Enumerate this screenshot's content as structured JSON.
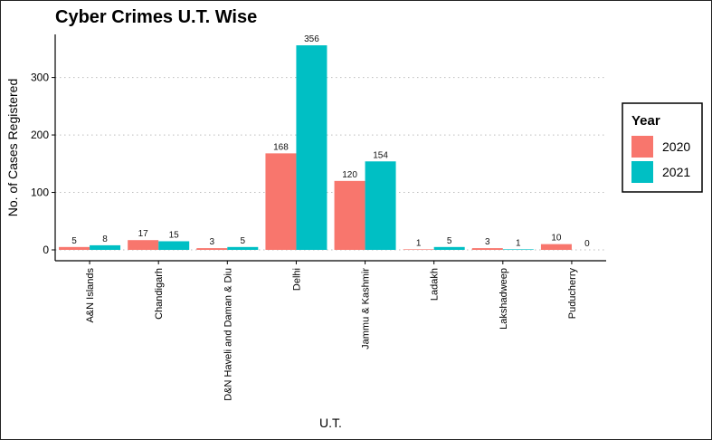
{
  "chart_data": {
    "type": "bar",
    "title": "Cyber Crimes U.T. Wise",
    "xlabel": "U.T.",
    "ylabel": "No. of Cases Registered",
    "categories": [
      "A&N Islands",
      "Chandigarh",
      "D&N Haveli and Daman & Diu",
      "Delhi",
      "Jammu & Kashmir",
      "Ladakh",
      "Lakshadweep",
      "Puducherry"
    ],
    "series": [
      {
        "name": "2020",
        "color": "#F8766D",
        "values": [
          5,
          17,
          3,
          168,
          120,
          1,
          3,
          10
        ]
      },
      {
        "name": "2021",
        "color": "#00BFC4",
        "values": [
          8,
          15,
          5,
          356,
          154,
          5,
          1,
          0
        ]
      }
    ],
    "ylim": [
      0,
      375
    ],
    "yticks": [
      0,
      100,
      200,
      300
    ],
    "grid": "horizontal-dotted",
    "legend": {
      "title": "Year",
      "position": "right"
    }
  }
}
